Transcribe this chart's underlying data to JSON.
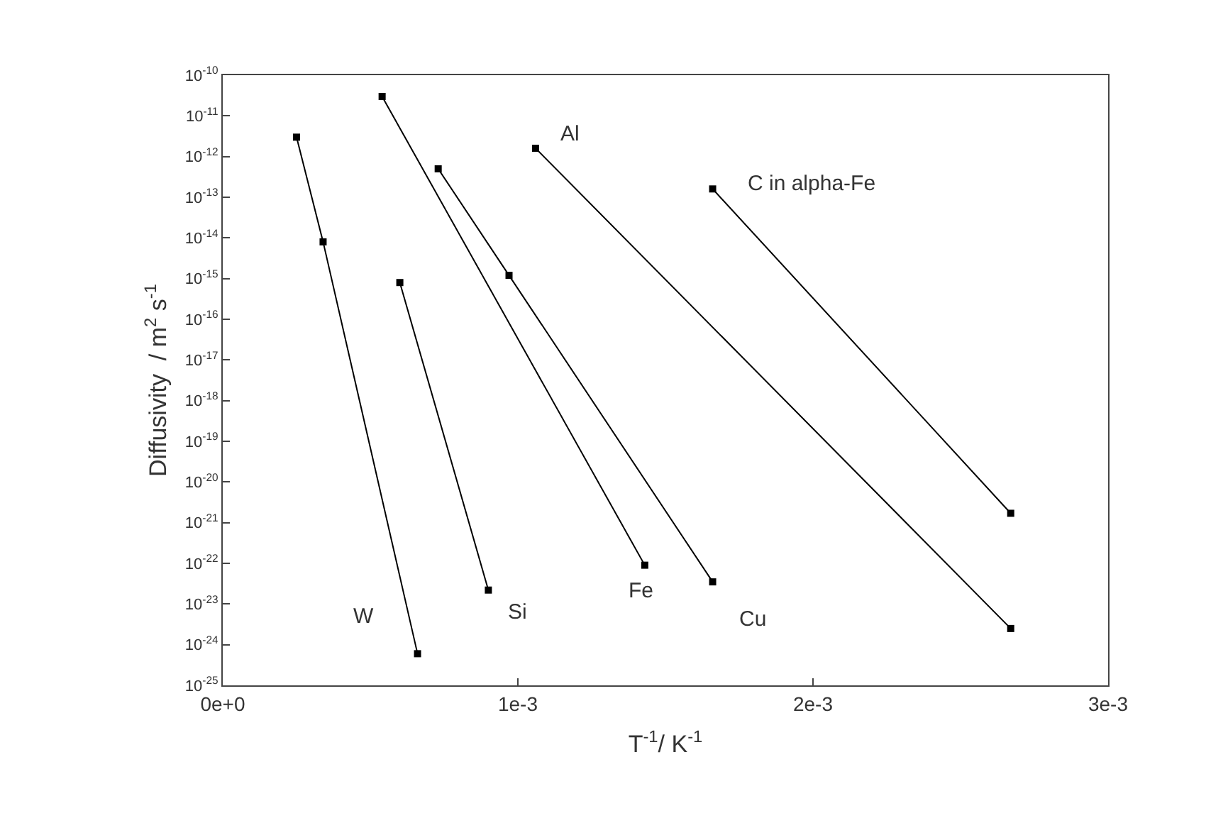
{
  "chart_data": {
    "type": "line",
    "xlabel": "T$^{-1}$/ K$^{-1}$",
    "ylabel": "Diffusivity  / m$^{2}$ s$^{-1}$",
    "log": "y",
    "marker": "square",
    "legend": false,
    "xlim": [
      0,
      0.003
    ],
    "xticks": [
      {
        "value": 0,
        "label": "0e+0"
      },
      {
        "value": 0.001,
        "label": "1e-3"
      },
      {
        "value": 0.002,
        "label": "2e-3"
      },
      {
        "value": 0.003,
        "label": "3e-3"
      }
    ],
    "ylim": [
      1e-25,
      1e-10
    ],
    "yticks": [
      {
        "value": 1e-10,
        "label": "10$^{-10}$"
      },
      {
        "value": 1e-11,
        "label": "10$^{-11}$"
      },
      {
        "value": 1e-12,
        "label": "10$^{-12}$"
      },
      {
        "value": 1e-13,
        "label": "10$^{-13}$"
      },
      {
        "value": 1e-14,
        "label": "10$^{-14}$"
      },
      {
        "value": 1e-15,
        "label": "10$^{-15}$"
      },
      {
        "value": 1e-16,
        "label": "10$^{-16}$"
      },
      {
        "value": 1e-17,
        "label": "10$^{-17}$"
      },
      {
        "value": 1e-18,
        "label": "10$^{-18}$"
      },
      {
        "value": 1e-19,
        "label": "10$^{-19}$"
      },
      {
        "value": 1e-20,
        "label": "10$^{-20}$"
      },
      {
        "value": 1e-21,
        "label": "10$^{-21}$"
      },
      {
        "value": 1e-22,
        "label": "10$^{-22}$"
      },
      {
        "value": 1e-23,
        "label": "10$^{-23}$"
      },
      {
        "value": 1e-24,
        "label": "10$^{-24}$"
      },
      {
        "value": 1e-25,
        "label": "10$^{-25}$"
      }
    ],
    "series": [
      {
        "name": "W",
        "color": "#000000",
        "x": [
          0.00025,
          0.00034,
          0.00066
        ],
        "values": [
          3e-12,
          8e-15,
          6e-25
        ]
      },
      {
        "name": "Si",
        "color": "#000000",
        "x": [
          0.0006,
          0.0009
        ],
        "values": [
          8e-16,
          2.2e-23
        ]
      },
      {
        "name": "Fe",
        "color": "#000000",
        "x": [
          0.00054,
          0.00143
        ],
        "values": [
          3e-11,
          9e-23
        ]
      },
      {
        "name": "Cu",
        "color": "#000000",
        "x": [
          0.00073,
          0.00097,
          0.00166
        ],
        "values": [
          5e-13,
          1.2e-15,
          3.5e-23
        ]
      },
      {
        "name": "Al",
        "color": "#000000",
        "x": [
          0.00106,
          0.00267
        ],
        "values": [
          1.6e-12,
          2.5e-24
        ]
      },
      {
        "name": "C in alpha-Fe",
        "color": "#000000",
        "x": [
          0.00166,
          0.00267
        ],
        "values": [
          1.6e-13,
          1.7e-21
        ]
      }
    ]
  }
}
